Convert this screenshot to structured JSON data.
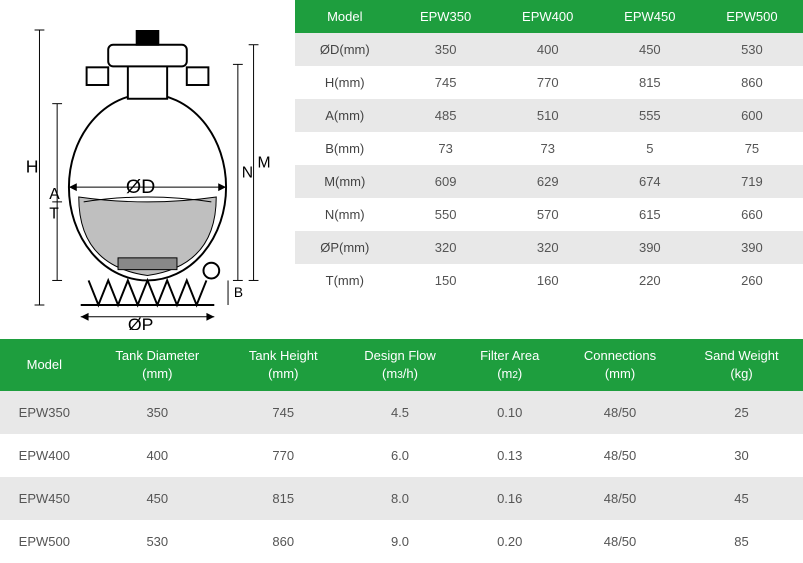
{
  "colors": {
    "header_bg": "#1e9e3e",
    "header_text": "#ffffff",
    "row_alt_bg": "#e8e8e8",
    "row_bg": "#ffffff",
    "cell_text": "#555555"
  },
  "diagram": {
    "labels": {
      "H": "H",
      "A": "A",
      "T": "T",
      "OD": "ØD",
      "N": "N",
      "M": "M",
      "B": "B",
      "OP": "ØP"
    }
  },
  "dim_table": {
    "headers": [
      "Model",
      "EPW350",
      "EPW400",
      "EPW450",
      "EPW500"
    ],
    "rows": [
      {
        "label": "ØD(mm)",
        "v": [
          "350",
          "400",
          "450",
          "530"
        ]
      },
      {
        "label": "H(mm)",
        "v": [
          "745",
          "770",
          "815",
          "860"
        ]
      },
      {
        "label": "A(mm)",
        "v": [
          "485",
          "510",
          "555",
          "600"
        ]
      },
      {
        "label": "B(mm)",
        "v": [
          "73",
          "73",
          "5",
          "75"
        ]
      },
      {
        "label": "M(mm)",
        "v": [
          "609",
          "629",
          "674",
          "719"
        ]
      },
      {
        "label": "N(mm)",
        "v": [
          "550",
          "570",
          "615",
          "660"
        ]
      },
      {
        "label": "ØP(mm)",
        "v": [
          "320",
          "320",
          "390",
          "390"
        ]
      },
      {
        "label": "T(mm)",
        "v": [
          "150",
          "160",
          "220",
          "260"
        ]
      }
    ]
  },
  "spec_table": {
    "headers": [
      {
        "title": "Model",
        "unit": ""
      },
      {
        "title": "Tank Diameter",
        "unit": "(mm)"
      },
      {
        "title": "Tank Height",
        "unit": "(mm)"
      },
      {
        "title": "Design Flow",
        "unit": "(m3/h)"
      },
      {
        "title": "Filter Area",
        "unit": "(m2)"
      },
      {
        "title": "Connections",
        "unit": "(mm)"
      },
      {
        "title": "Sand Weight",
        "unit": "(kg)"
      }
    ],
    "rows": [
      [
        "EPW350",
        "350",
        "745",
        "4.5",
        "0.10",
        "48/50",
        "25"
      ],
      [
        "EPW400",
        "400",
        "770",
        "6.0",
        "0.13",
        "48/50",
        "30"
      ],
      [
        "EPW450",
        "450",
        "815",
        "8.0",
        "0.16",
        "48/50",
        "45"
      ],
      [
        "EPW500",
        "530",
        "860",
        "9.0",
        "0.20",
        "48/50",
        "85"
      ]
    ]
  }
}
